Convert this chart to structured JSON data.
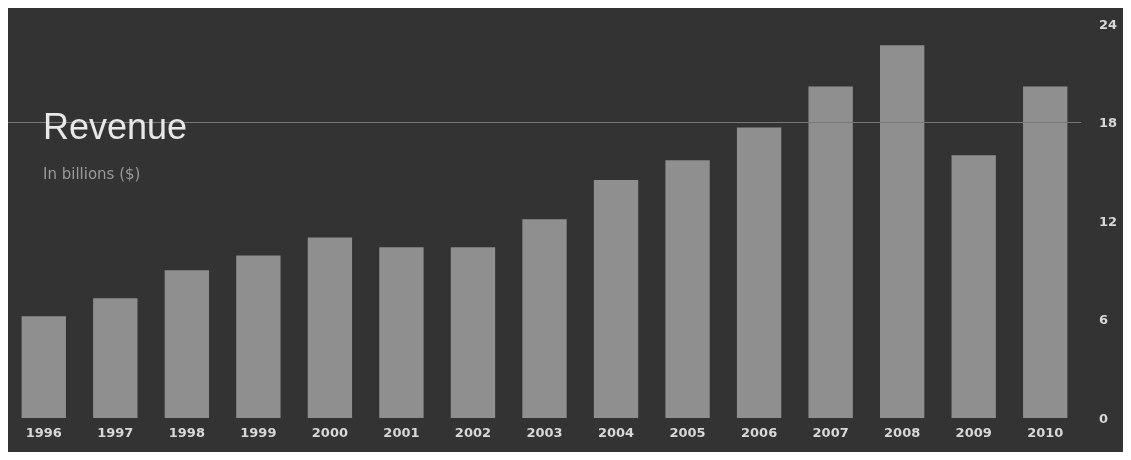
{
  "chart_data": {
    "type": "bar",
    "title": "Revenue",
    "subtitle": "In billions ($)",
    "categories": [
      "1996",
      "1997",
      "1998",
      "1999",
      "2000",
      "2001",
      "2002",
      "2003",
      "2004",
      "2005",
      "2006",
      "2007",
      "2008",
      "2009",
      "2010"
    ],
    "values": [
      6.2,
      7.3,
      9.0,
      9.9,
      11.0,
      10.4,
      10.4,
      12.1,
      14.5,
      15.7,
      17.7,
      20.2,
      22.7,
      16.0,
      20.2
    ],
    "color": "#8f8f8f",
    "ylim": [
      0,
      24
    ],
    "yticks": [
      0,
      6,
      12,
      18,
      24
    ],
    "grid": false,
    "ref_lines": [
      {
        "axis": "y",
        "value": 18,
        "color": "#777777"
      }
    ]
  }
}
